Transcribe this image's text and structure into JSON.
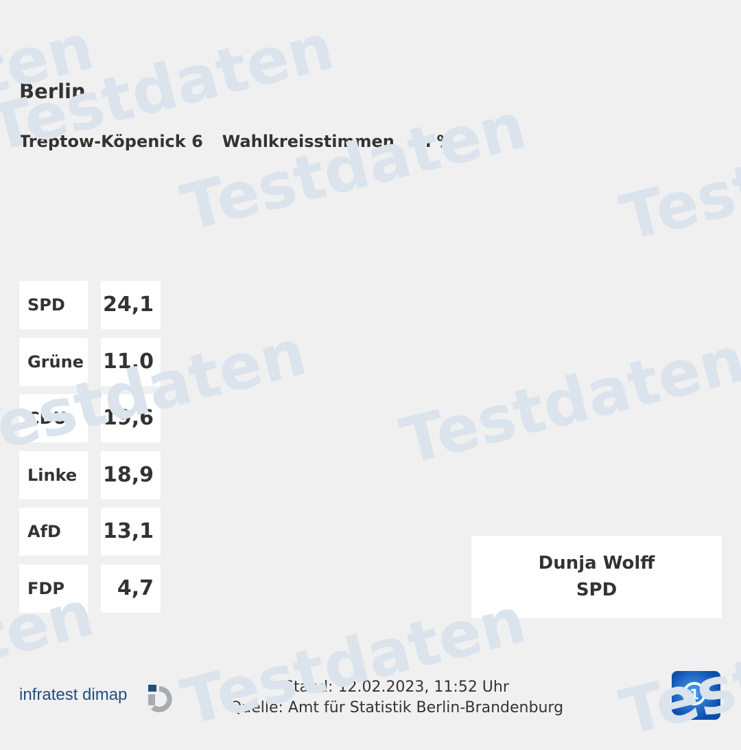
{
  "header": {
    "region": "Berlin",
    "constituency": "Treptow-Köpenick 6",
    "vote_type": "Wahlkreisstimmen",
    "unit": "in %"
  },
  "results": [
    {
      "party": "SPD",
      "value": "24,1"
    },
    {
      "party": "Grüne",
      "value": "11,0"
    },
    {
      "party": "CDU",
      "value": "19,6"
    },
    {
      "party": "Linke",
      "value": "18,9"
    },
    {
      "party": "AfD",
      "value": "13,1"
    },
    {
      "party": "FDP",
      "value": "4,7"
    }
  ],
  "winner": {
    "name": "Dunja Wolff",
    "party": "SPD"
  },
  "footer": {
    "stand": "Stand: 12.02.2023, 11:52 Uhr",
    "source": "Quelle: Amt für Statistik Berlin-Brandenburg"
  },
  "branding": {
    "pollster": "infratest dimap",
    "broadcaster_logo": "tagesschau-icon",
    "watermark": "Testdaten"
  },
  "colors": {
    "background": "#f0f0f0",
    "watermark": "#dbe3ec",
    "pollster_blue": "#1f4f7f"
  }
}
